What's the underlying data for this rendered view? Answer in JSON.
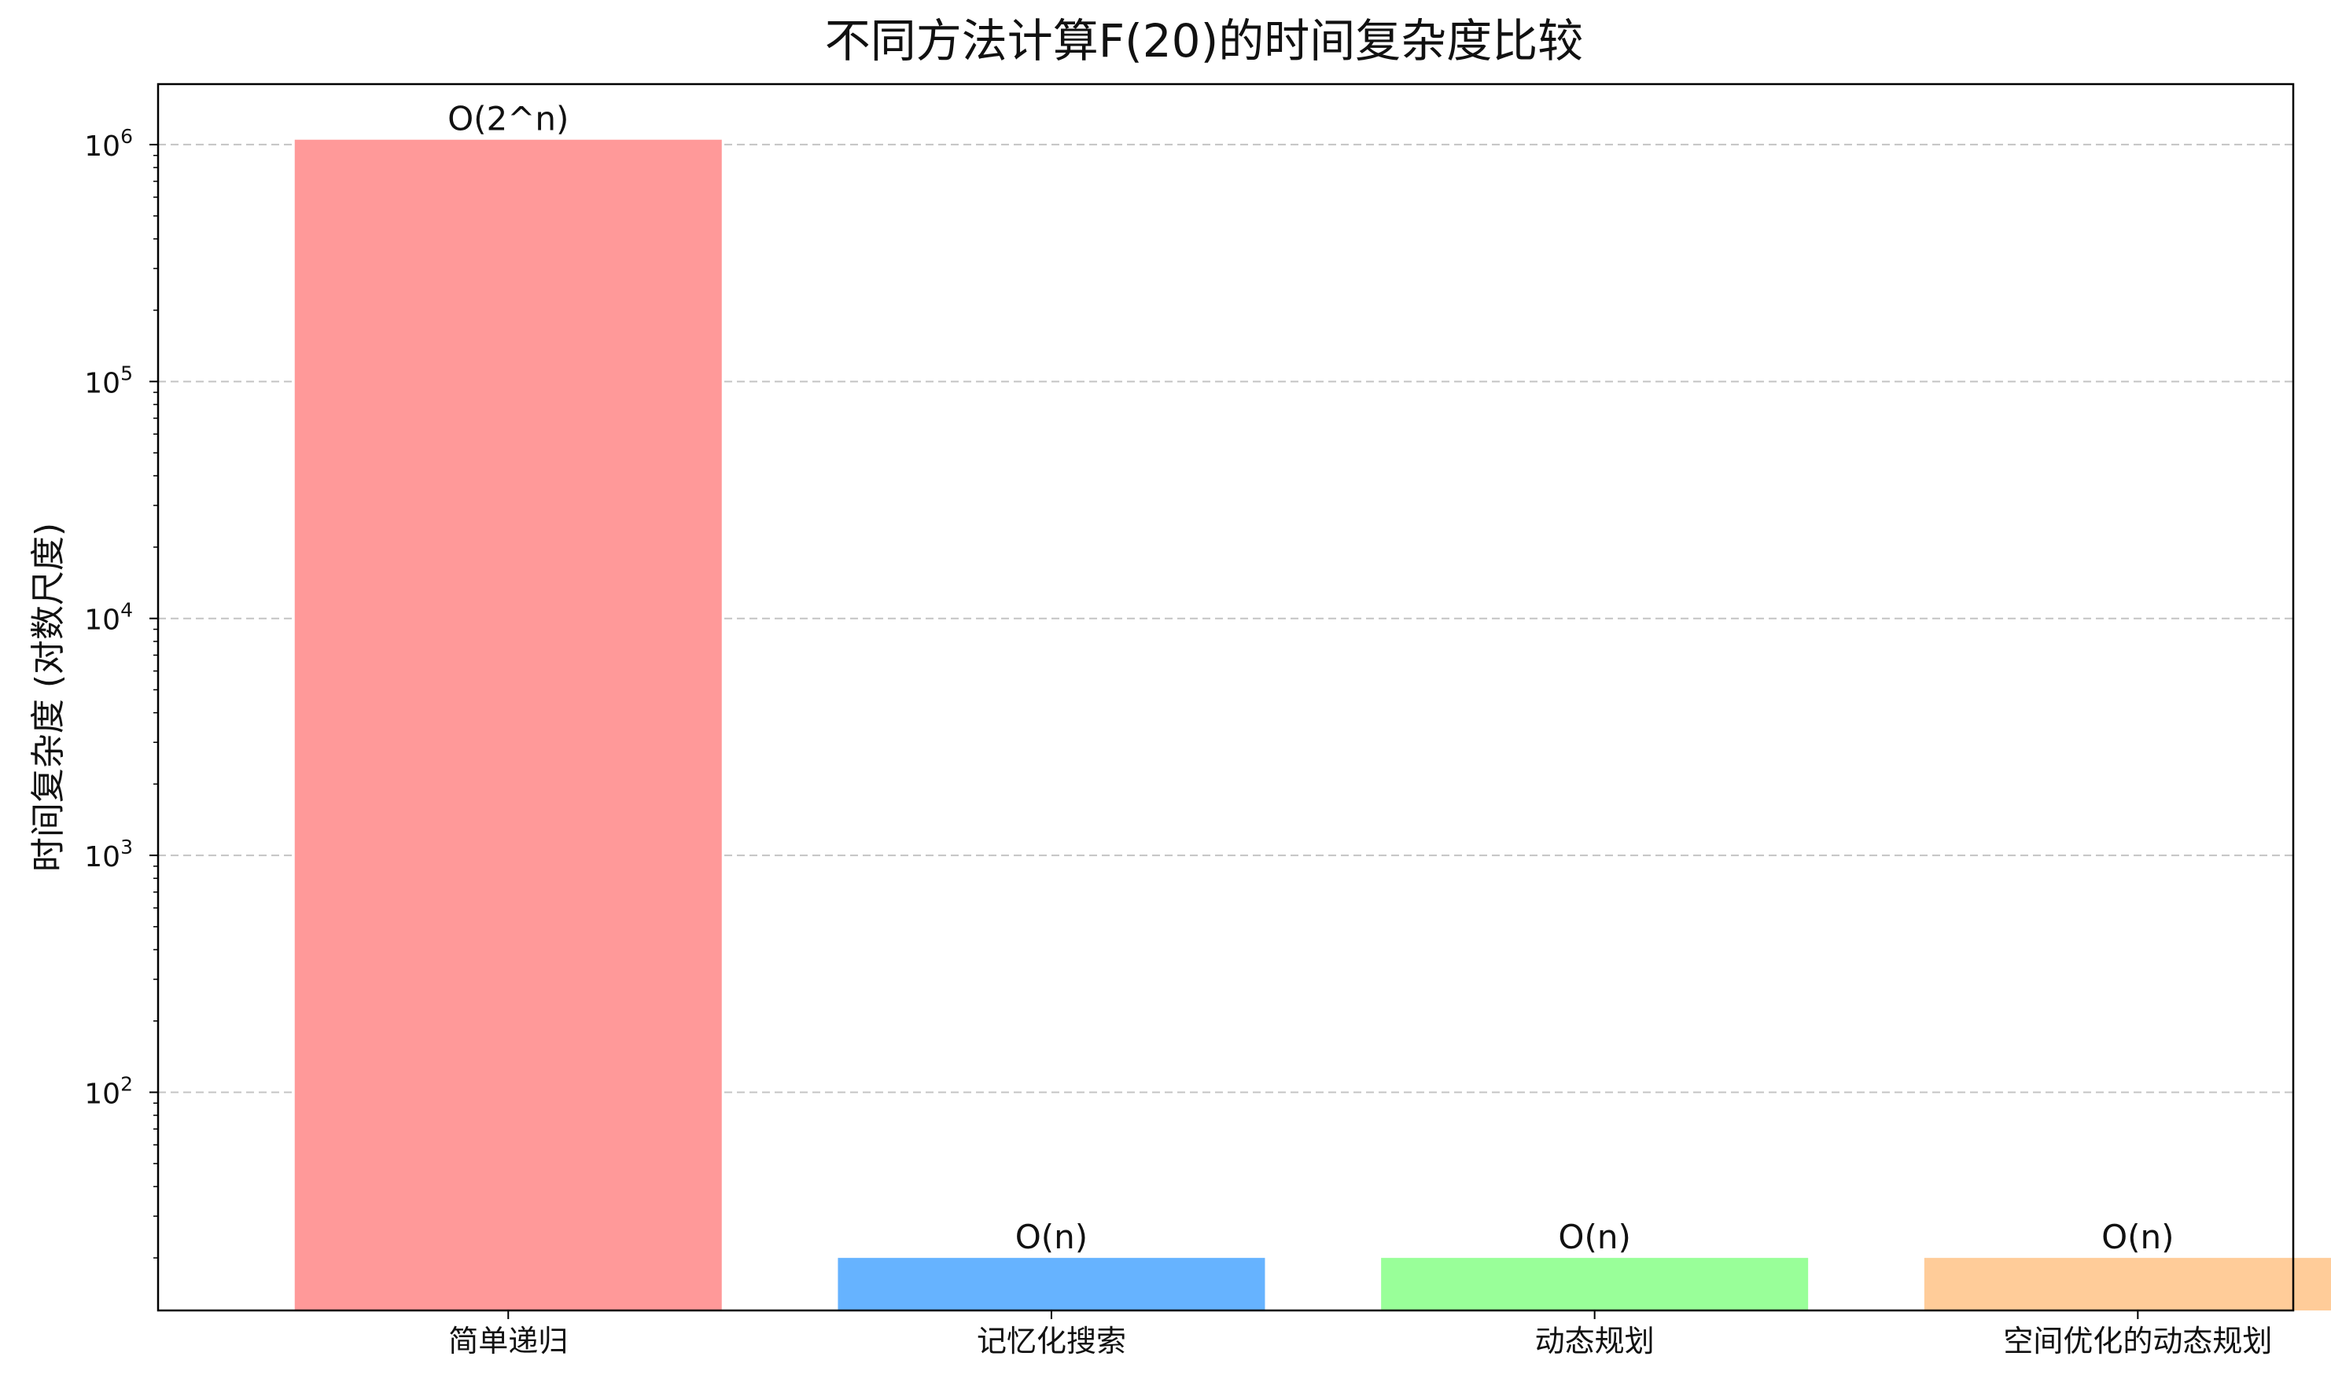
{
  "chart_data": {
    "type": "bar",
    "title": "不同方法计算F(20)的时间复杂度比较",
    "xlabel": "",
    "ylabel": "时间复杂度 (对数尺度)",
    "y_scale": "log",
    "ylim": [
      12,
      1800000
    ],
    "grid": "y-dashed",
    "legend": "none",
    "categories": [
      "简单递归",
      "记忆化搜索",
      "动态规划",
      "空间优化的动态规划"
    ],
    "values": [
      1048576,
      20,
      20,
      20
    ],
    "bar_labels": [
      "O(2^n)",
      "O(n)",
      "O(n)",
      "O(n)"
    ],
    "colors": [
      "#ff9999",
      "#66b3ff",
      "#99ff99",
      "#ffcc99"
    ],
    "y_ticks": [
      {
        "value": 100,
        "base": "10",
        "exp": "2"
      },
      {
        "value": 1000,
        "base": "10",
        "exp": "3"
      },
      {
        "value": 10000,
        "base": "10",
        "exp": "4"
      },
      {
        "value": 100000,
        "base": "10",
        "exp": "5"
      },
      {
        "value": 1000000,
        "base": "10",
        "exp": "6"
      }
    ]
  }
}
